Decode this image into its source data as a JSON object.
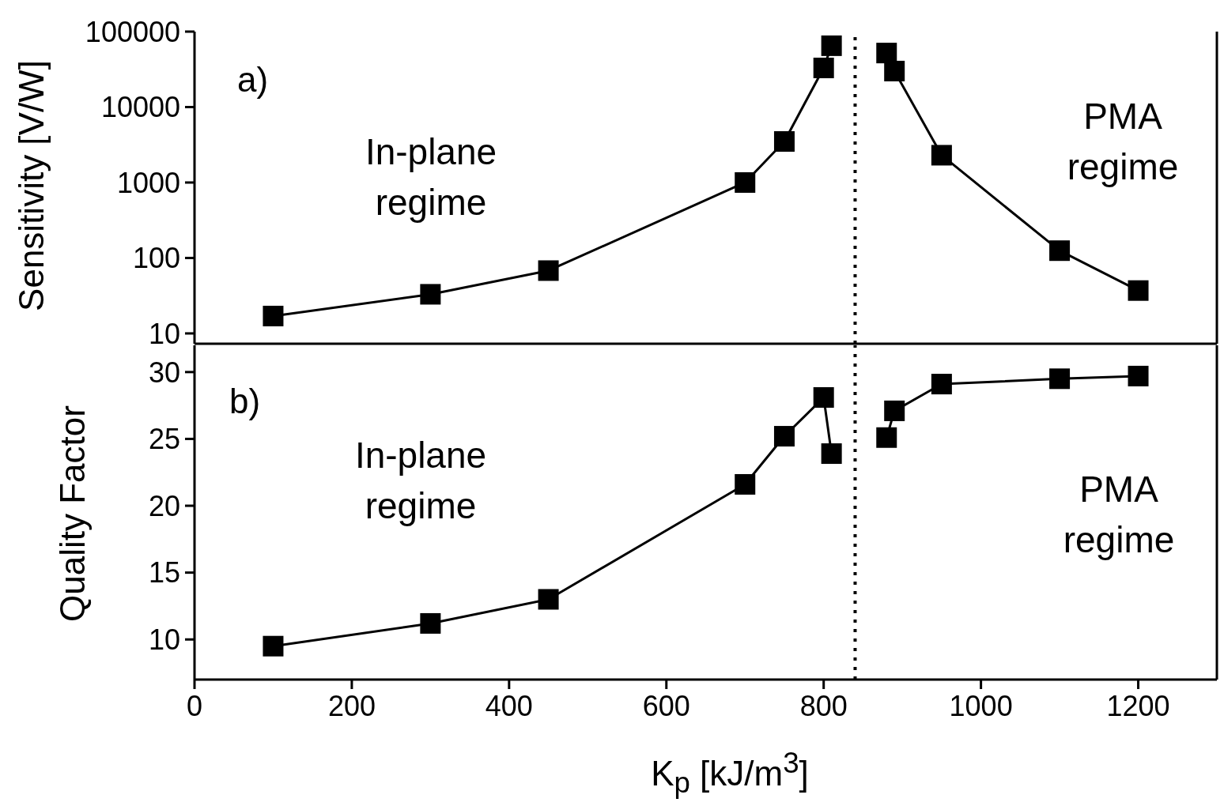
{
  "chart_data": [
    {
      "type": "line",
      "ylabel": "Sensitivity [V/W]",
      "xlim": [
        0,
        1300
      ],
      "xticks": [
        0,
        200,
        400,
        600,
        800,
        1000,
        1200
      ],
      "ylim": [
        7.3,
        100000
      ],
      "yticks": [
        10,
        100,
        1000,
        10000,
        100000
      ],
      "log": "y",
      "tick_labels": "y",
      "marker": "square",
      "series": [
        {
          "color": "#000000",
          "x": [
            100,
            300,
            450,
            700,
            750,
            800,
            810
          ],
          "values": [
            17,
            33,
            68,
            1000,
            3500,
            33000,
            65000
          ]
        },
        {
          "color": "#000000",
          "x": [
            880,
            890,
            950,
            1100,
            1200
          ],
          "values": [
            52000,
            30000,
            2300,
            125,
            37
          ]
        }
      ],
      "ref_lines": [
        {
          "axis": "x",
          "value": 840,
          "line_style": "dotted",
          "color": "#000000"
        }
      ],
      "annotations": [
        "a)",
        "In-plane\nregime",
        "PMA\nregime"
      ]
    },
    {
      "type": "line",
      "ylabel": "Quality Factor",
      "xlabel": "K$_{p}$ [kJ/m$^{3}$]",
      "xlim": [
        0,
        1300
      ],
      "xticks": [
        0,
        200,
        400,
        600,
        800,
        1000,
        1200
      ],
      "ylim": [
        7,
        32
      ],
      "yticks": [
        10,
        15,
        20,
        25,
        30
      ],
      "marker": "square",
      "series": [
        {
          "color": "#000000",
          "x": [
            100,
            300,
            450,
            700,
            750,
            800,
            810
          ],
          "values": [
            9.5,
            11.2,
            13.0,
            21.6,
            25.2,
            28.1,
            23.9
          ]
        },
        {
          "color": "#000000",
          "x": [
            880,
            890,
            950,
            1100,
            1200
          ],
          "values": [
            25.1,
            27.1,
            29.1,
            29.5,
            29.7
          ]
        }
      ],
      "ref_lines": [
        {
          "axis": "x",
          "value": 840,
          "line_style": "dotted",
          "color": "#000000"
        }
      ],
      "annotations": [
        "b)",
        "In-plane\nregime",
        "PMA\nregime"
      ]
    }
  ]
}
